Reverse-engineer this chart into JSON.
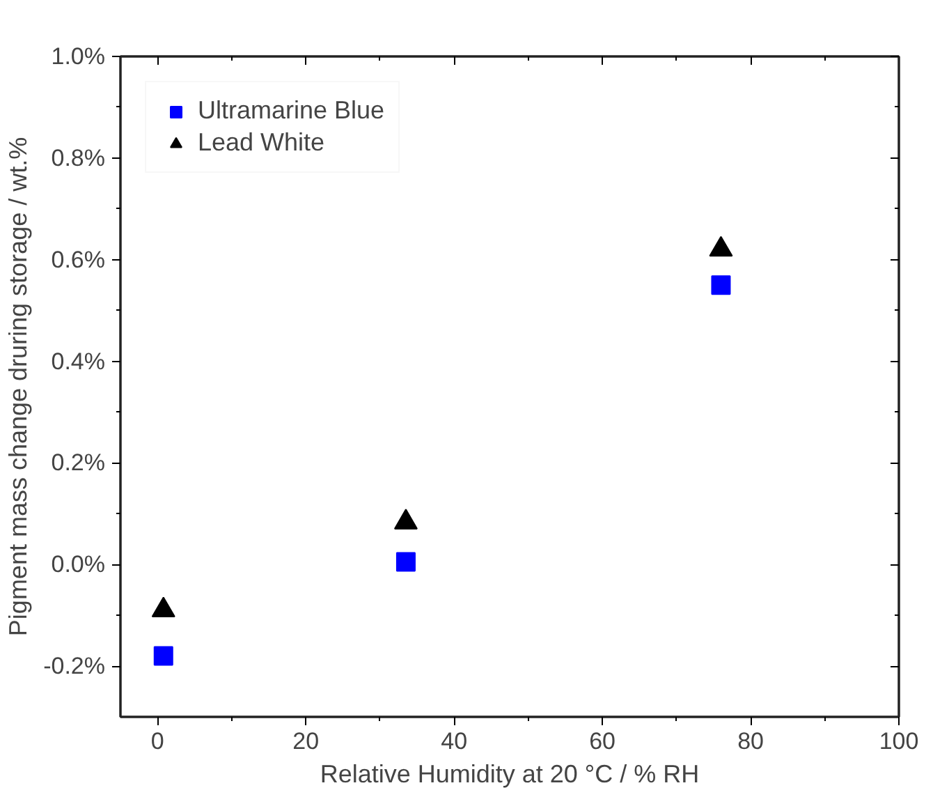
{
  "chart_data": {
    "type": "scatter",
    "xlabel": "Relative Humidity at 20 °C / % RH",
    "ylabel": "Pigment mass change druring storage / wt.%",
    "x": [
      0.8,
      33.5,
      76
    ],
    "series": [
      {
        "name": "Ultramarine Blue",
        "color": "#0000ff",
        "marker": "square",
        "values": [
          -0.18,
          0.005,
          0.55
        ]
      },
      {
        "name": "Lead White",
        "color": "#000000",
        "marker": "triangle",
        "values": [
          -0.09,
          0.083,
          0.62
        ]
      }
    ],
    "xlim": [
      -5,
      100
    ],
    "xticks": [
      0,
      20,
      40,
      60,
      80,
      100
    ],
    "ylim": [
      -0.3,
      1.0
    ],
    "yticks": [
      {
        "value": -0.2,
        "label": "-0.2%"
      },
      {
        "value": 0.0,
        "label": "0.0%"
      },
      {
        "value": 0.2,
        "label": "0.2%"
      },
      {
        "value": 0.4,
        "label": "0.4%"
      },
      {
        "value": 0.6,
        "label": "0.6%"
      },
      {
        "value": 0.8,
        "label": "0.8%"
      },
      {
        "value": 1.0,
        "label": "1.0%"
      }
    ],
    "grid": false,
    "legend": "top left"
  }
}
